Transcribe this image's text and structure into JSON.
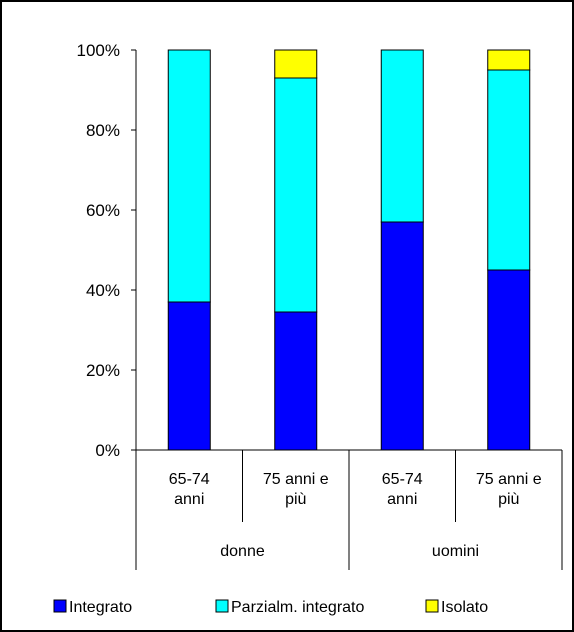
{
  "chart_data": {
    "type": "bar",
    "stacked": true,
    "percent_axis": true,
    "categories": [
      {
        "group": "donne",
        "label_lines": [
          "65-74",
          "anni"
        ]
      },
      {
        "group": "donne",
        "label_lines": [
          "75 anni e",
          "più"
        ]
      },
      {
        "group": "uomini",
        "label_lines": [
          "65-74",
          "anni"
        ]
      },
      {
        "group": "uomini",
        "label_lines": [
          "75 anni e",
          "più"
        ]
      }
    ],
    "groups": [
      "donne",
      "uomini"
    ],
    "series": [
      {
        "name": "Integrato",
        "color": "#0000ff",
        "values": [
          37,
          34.5,
          57,
          45
        ]
      },
      {
        "name": "Parzialm. integrato",
        "color": "#00ffff",
        "values": [
          63,
          58.5,
          43,
          50
        ]
      },
      {
        "name": "Isolato",
        "color": "#ffff00",
        "values": [
          0,
          7,
          0,
          5
        ]
      }
    ],
    "ylim": [
      0,
      100
    ],
    "yticks": [
      "0%",
      "20%",
      "40%",
      "60%",
      "80%",
      "100%"
    ],
    "grid": false,
    "legend_position": "bottom",
    "title": "",
    "xlabel": "",
    "ylabel": ""
  }
}
